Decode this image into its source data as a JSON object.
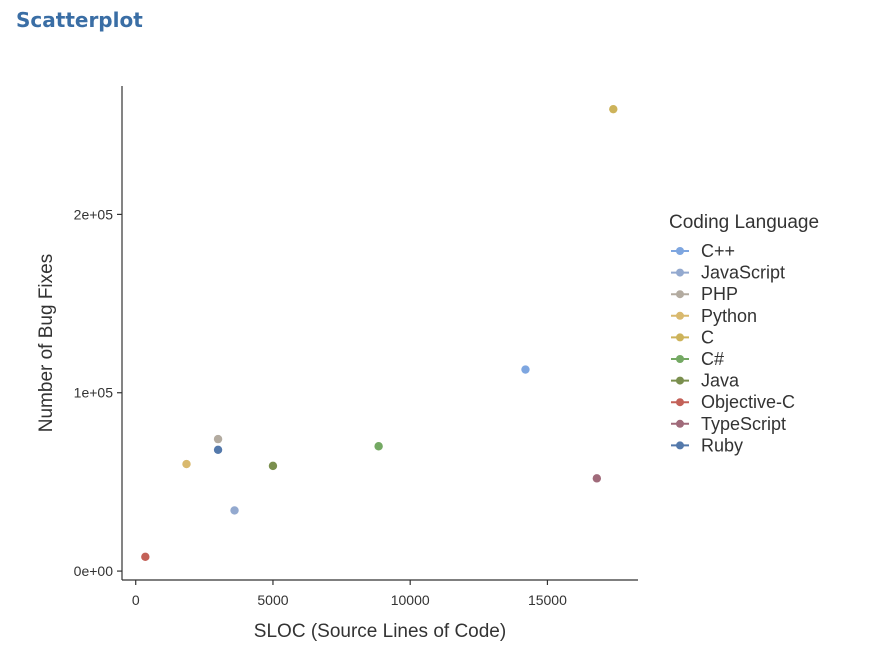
{
  "header": {
    "title": "Scatterplot"
  },
  "chart_data": {
    "type": "scatter",
    "title": "",
    "xlabel": "SLOC (Source Lines of Code)",
    "ylabel": "Number of Bug Fixes",
    "xlim": [
      -500,
      18300
    ],
    "ylim": [
      -5000,
      272000
    ],
    "x_ticks": [
      {
        "value": 0,
        "label": "0"
      },
      {
        "value": 5000,
        "label": "5000"
      },
      {
        "value": 10000,
        "label": "10000"
      },
      {
        "value": 15000,
        "label": "15000"
      }
    ],
    "y_ticks": [
      {
        "value": 0,
        "label": "0e+00"
      },
      {
        "value": 100000,
        "label": "1e+05"
      },
      {
        "value": 200000,
        "label": "2e+05"
      }
    ],
    "grid": false,
    "legend_position": "right",
    "legend_title": "Coding Language",
    "series": [
      {
        "name": "C++",
        "color": "#7ea6e0",
        "points": [
          {
            "x": 14200,
            "y": 113000
          }
        ]
      },
      {
        "name": "JavaScript",
        "color": "#93a9cf",
        "points": [
          {
            "x": 3600,
            "y": 34000
          }
        ]
      },
      {
        "name": "PHP",
        "color": "#b3aba0",
        "points": [
          {
            "x": 3000,
            "y": 74000
          }
        ]
      },
      {
        "name": "Python",
        "color": "#d9b96e",
        "points": [
          {
            "x": 1850,
            "y": 60000
          }
        ]
      },
      {
        "name": "C",
        "color": "#cdb35a",
        "points": [
          {
            "x": 17400,
            "y": 259000
          }
        ]
      },
      {
        "name": "C#",
        "color": "#74a963",
        "points": [
          {
            "x": 8850,
            "y": 70000
          }
        ]
      },
      {
        "name": "Java",
        "color": "#7a8f4e",
        "points": [
          {
            "x": 5000,
            "y": 59000
          }
        ]
      },
      {
        "name": "Objective-C",
        "color": "#c36158",
        "points": [
          {
            "x": 350,
            "y": 8000
          }
        ]
      },
      {
        "name": "TypeScript",
        "color": "#a06a7a",
        "points": [
          {
            "x": 16800,
            "y": 52000
          }
        ]
      },
      {
        "name": "Ruby",
        "color": "#5479ab",
        "points": [
          {
            "x": 3000,
            "y": 68000
          }
        ]
      }
    ]
  }
}
